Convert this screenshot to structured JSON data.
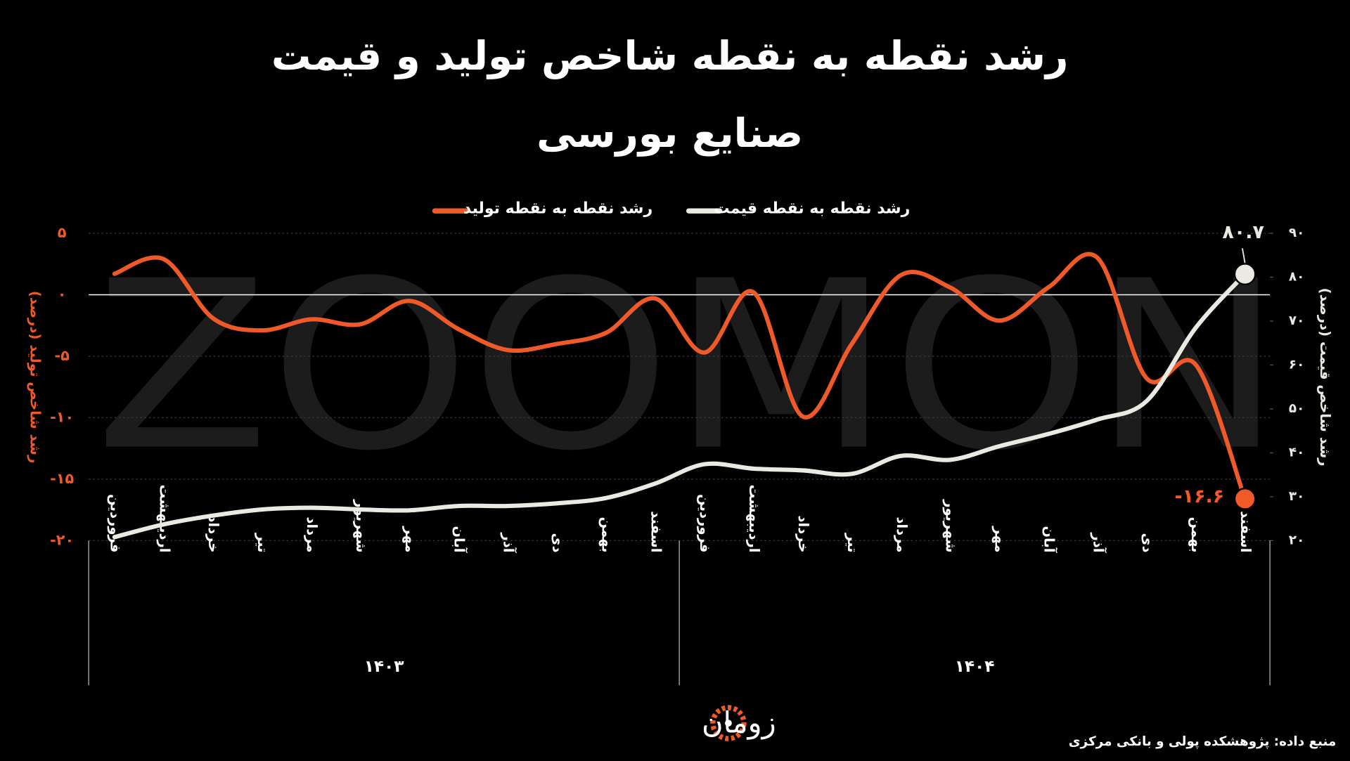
{
  "chart_data": {
    "type": "line",
    "title": [
      "رشد نقطه به نقطه شاخص تولید و قیمت",
      "صنایع بورسی"
    ],
    "watermark": "ZOOMON",
    "categories": [
      "فروردین",
      "اردیبهشت",
      "خرداد",
      "تیر",
      "مرداد",
      "شهریور",
      "مهر",
      "آبان",
      "آذر",
      "دی",
      "بهمن",
      "اسفند",
      "فروردین",
      "اردیبهشت",
      "خرداد",
      "تیر",
      "مرداد",
      "شهریور",
      "مهر",
      "آبان",
      "آذر",
      "دی",
      "بهمن",
      "اسفند"
    ],
    "x_groups": [
      "۱۴۰۳",
      "۱۴۰۴"
    ],
    "series": [
      {
        "name": "رشد نقطه به نقطه تولید",
        "color": "#f05a28",
        "axis": "y",
        "values": [
          1.7,
          2.9,
          -1.9,
          -2.9,
          -2.0,
          -2.4,
          -0.5,
          -2.8,
          -4.5,
          -4.0,
          -3.1,
          -0.3,
          -4.7,
          0.2,
          -9.9,
          -4.0,
          1.6,
          0.6,
          -2.1,
          0.6,
          3.0,
          -6.8,
          -5.7,
          -16.6
        ],
        "value_labels": [
          null,
          null,
          null,
          null,
          null,
          null,
          null,
          null,
          null,
          null,
          null,
          null,
          null,
          null,
          null,
          null,
          null,
          null,
          null,
          null,
          null,
          null,
          null,
          "-۱۶.۶"
        ]
      },
      {
        "name": "رشد نقطه به نقطه قیمت",
        "color": "#ece9e2",
        "axis": "y2",
        "values": [
          20.8,
          23.7,
          25.7,
          27.1,
          27.5,
          27.1,
          26.9,
          27.9,
          27.9,
          28.5,
          29.7,
          33.0,
          37.4,
          36.4,
          36.0,
          35.2,
          39.3,
          38.4,
          41.5,
          44.3,
          47.6,
          51.8,
          68.5,
          80.7
        ],
        "value_labels": [
          null,
          null,
          null,
          null,
          null,
          null,
          null,
          null,
          null,
          null,
          null,
          null,
          null,
          null,
          null,
          null,
          null,
          null,
          null,
          null,
          null,
          null,
          null,
          "۸۰.۷"
        ]
      }
    ],
    "ylabel": "رشد شاخص تولید (درصد)",
    "y2label": "رشد شاخص قیمت (درصد)",
    "ylim": [
      -20,
      5
    ],
    "yticks": [
      {
        "value": -20,
        "label": "-۲۰"
      },
      {
        "value": -15,
        "label": "-۱۵"
      },
      {
        "value": -10,
        "label": "-۱۰"
      },
      {
        "value": -5,
        "label": "-۵"
      },
      {
        "value": 0,
        "label": "۰"
      },
      {
        "value": 5,
        "label": "۵"
      }
    ],
    "y2lim": [
      20,
      90
    ],
    "y2ticks": [
      {
        "value": 20,
        "label": "۲۰"
      },
      {
        "value": 30,
        "label": "۳۰"
      },
      {
        "value": 40,
        "label": "۴۰"
      },
      {
        "value": 50,
        "label": "۵۰"
      },
      {
        "value": 60,
        "label": "۶۰"
      },
      {
        "value": 70,
        "label": "۷۰"
      },
      {
        "value": 80,
        "label": "۸۰"
      },
      {
        "value": 90,
        "label": "۹۰"
      }
    ],
    "grid": true,
    "logo": "زومان",
    "source": "منبع داده: پژوهشکده پولی و بانکی مرکزی"
  }
}
